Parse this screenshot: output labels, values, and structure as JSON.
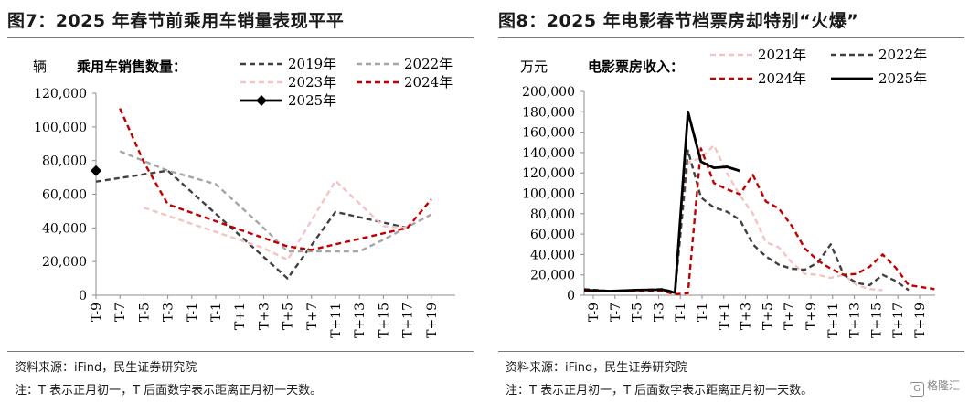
{
  "left_panel": {
    "title": "图7：2025 年春节前乘用车销量表现平平",
    "source": "资料来源：iFind，民生证券研究院",
    "note": "注：T 表示正月初一，T 后面数字表示距离正月初一天数。"
  },
  "right_panel": {
    "title": "图8：2025 年电影春节档票房却特别“火爆”",
    "source": "资料来源：iFind，民生证券研究院",
    "note": "注：T 表示正月初一，T 后面数字表示距离正月初一天数。"
  },
  "watermark": "格隆汇",
  "colors": {
    "2019年": "#404040",
    "2022年": "#a6a6a6",
    "2023年": "#f2c4c4",
    "2024年": "#c00000",
    "2025年": "#000000",
    "2021年": "#f2c4c4",
    "axis": "#8c8c8c"
  },
  "chart_data": [
    {
      "type": "line",
      "unit": "辆",
      "ylabel": "乘用车销售数量：",
      "ylim": [
        0,
        120000
      ],
      "yticks": [
        "0",
        "20,000",
        "40,000",
        "60,000",
        "80,000",
        "100,000",
        "120,000"
      ],
      "categories": [
        "T-9",
        "T-7",
        "T-5",
        "T-3",
        "T-1",
        "T-1",
        "T+1",
        "T+3",
        "T+5",
        "T+7",
        "T+11",
        "T+13",
        "T+15",
        "T+17",
        "T+19"
      ],
      "legend_placement": "top-right",
      "series": [
        {
          "name": "2019年",
          "style": "dash-dark",
          "points": [
            [
              0,
              67500
            ],
            [
              3,
              74000
            ],
            [
              8,
              10000
            ],
            [
              10,
              49500
            ],
            [
              13,
              40000
            ]
          ]
        },
        {
          "name": "2022年",
          "style": "dash-gray",
          "points": [
            [
              1,
              85500
            ],
            [
              3,
              74000
            ],
            [
              5,
              66000
            ],
            [
              7,
              40000
            ],
            [
              8,
              26000
            ],
            [
              9,
              26000
            ],
            [
              10,
              26000
            ],
            [
              11,
              26000
            ],
            [
              12,
              33000
            ],
            [
              14,
              48000
            ]
          ]
        },
        {
          "name": "2023年",
          "style": "dash-pink",
          "points": [
            [
              2,
              52000
            ],
            [
              7,
              28000
            ],
            [
              8,
              21000
            ],
            [
              10,
              68000
            ],
            [
              12,
              41000
            ],
            [
              13,
              40000
            ]
          ]
        },
        {
          "name": "2024年",
          "style": "dash-red",
          "points": [
            [
              1,
              111000
            ],
            [
              2,
              79000
            ],
            [
              3,
              54000
            ],
            [
              8,
              29000
            ],
            [
              9,
              27000
            ],
            [
              13,
              40000
            ],
            [
              14,
              57000
            ]
          ]
        },
        {
          "name": "2025年",
          "style": "solid-black-diamond",
          "points": [
            [
              0,
              74000
            ]
          ]
        }
      ]
    },
    {
      "type": "line",
      "unit": "万元",
      "ylabel": "电影票房收入：",
      "ylim": [
        0,
        200000
      ],
      "yticks": [
        "0",
        "20,000",
        "40,000",
        "60,000",
        "80,000",
        "100,000",
        "120,000",
        "140,000",
        "160,000",
        "180,000",
        "200,000"
      ],
      "categories": [
        "T-9",
        "T-7",
        "T-5",
        "T-3",
        "T-1",
        "T-1",
        "T+1",
        "T+3",
        "T+5",
        "T+7",
        "T+9",
        "T+11",
        "T+13",
        "T+15",
        "T+17",
        "T+19"
      ],
      "legend_placement": "top-right",
      "series": [
        {
          "name": "2021年",
          "style": "dash-pink",
          "points": [
            [
              0,
              4000
            ],
            [
              6,
              5000
            ],
            [
              7,
              2500
            ],
            [
              8,
              130000
            ],
            [
              9,
              135000
            ],
            [
              10,
              147000
            ],
            [
              11,
              120000
            ],
            [
              12,
              98000
            ],
            [
              13,
              80000
            ],
            [
              14,
              52000
            ],
            [
              15,
              47000
            ],
            [
              16,
              32000
            ],
            [
              17,
              21000
            ],
            [
              18,
              20000
            ],
            [
              19,
              17000
            ],
            [
              20,
              20000
            ],
            [
              21,
              10000
            ],
            [
              22,
              6000
            ],
            [
              23,
              5000
            ]
          ]
        },
        {
          "name": "2022年",
          "style": "dash-dark",
          "points": [
            [
              0,
              6000
            ],
            [
              1,
              5000
            ],
            [
              2,
              4000
            ],
            [
              3,
              4500
            ],
            [
              4,
              5000
            ],
            [
              5,
              5500
            ],
            [
              6,
              6000
            ],
            [
              7,
              3000
            ],
            [
              8,
              142000
            ],
            [
              9,
              96000
            ],
            [
              10,
              86000
            ],
            [
              11,
              82000
            ],
            [
              12,
              74000
            ],
            [
              13,
              50000
            ],
            [
              14,
              38000
            ],
            [
              15,
              30000
            ],
            [
              16,
              26000
            ],
            [
              17,
              25000
            ],
            [
              18,
              32000
            ],
            [
              19,
              50000
            ],
            [
              20,
              20000
            ],
            [
              21,
              12000
            ],
            [
              22,
              10000
            ],
            [
              23,
              20000
            ],
            [
              24,
              14000
            ],
            [
              25,
              5000
            ]
          ]
        },
        {
          "name": "2024年",
          "style": "dash-red",
          "points": [
            [
              0,
              4000
            ],
            [
              5,
              4500
            ],
            [
              6,
              4000
            ],
            [
              7,
              1000
            ],
            [
              8,
              2000
            ],
            [
              9,
              144000
            ],
            [
              10,
              110000
            ],
            [
              11,
              104000
            ],
            [
              12,
              99000
            ],
            [
              13,
              118000
            ],
            [
              14,
              92000
            ],
            [
              15,
              85000
            ],
            [
              16,
              68000
            ],
            [
              17,
              46000
            ],
            [
              18,
              34000
            ],
            [
              19,
              26000
            ],
            [
              20,
              20000
            ],
            [
              21,
              21000
            ],
            [
              22,
              28000
            ],
            [
              23,
              40000
            ],
            [
              24,
              27000
            ],
            [
              25,
              10000
            ],
            [
              26,
              8000
            ],
            [
              27,
              6000
            ]
          ]
        },
        {
          "name": "2025年",
          "style": "solid-black",
          "points": [
            [
              0,
              5000
            ],
            [
              2,
              4000
            ],
            [
              4,
              5000
            ],
            [
              6,
              5500
            ],
            [
              7,
              2500
            ],
            [
              8,
              180000
            ],
            [
              9,
              131000
            ],
            [
              10,
              125000
            ],
            [
              11,
              126000
            ],
            [
              12,
              122000
            ]
          ]
        }
      ]
    }
  ]
}
